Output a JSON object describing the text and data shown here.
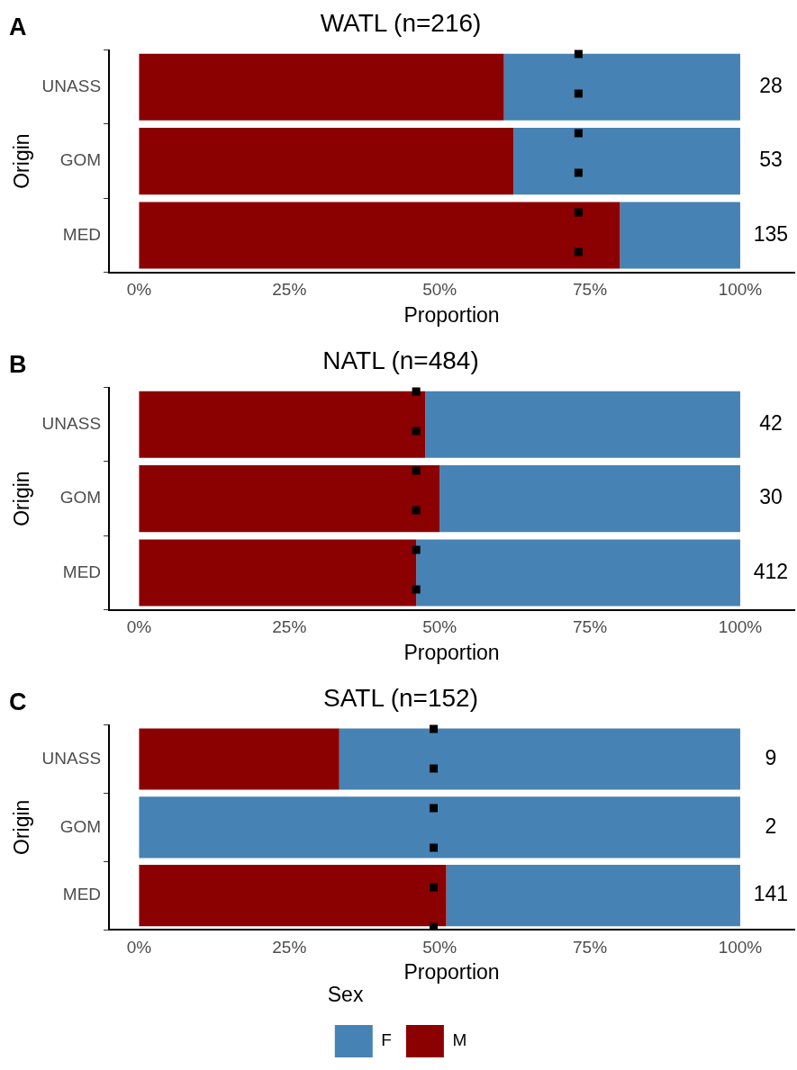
{
  "chart_data": [
    {
      "type": "bar",
      "orientation": "horizontal",
      "stacked": true,
      "title": "WATL (n=216)",
      "xlabel": "Proportion",
      "ylabel": "Origin",
      "categories": [
        "UNASS",
        "GOM",
        "MED"
      ],
      "series": [
        {
          "color": "#8b0000",
          "values": [
            60.7,
            62.3,
            80.0
          ]
        },
        {
          "color": "#4682b4",
          "values": [
            39.3,
            37.7,
            20.0
          ]
        }
      ],
      "xlim": [
        -5,
        109
      ],
      "xticks": [
        {
          "value": 0,
          "label": "0%"
        },
        {
          "value": 25,
          "label": "25%"
        },
        {
          "value": 50,
          "label": "50%"
        },
        {
          "value": 75,
          "label": "75%"
        },
        {
          "value": 100,
          "label": "100%"
        }
      ],
      "ref_lines": [
        {
          "axis": "x",
          "value": 73.1,
          "color": "#000000",
          "line_style": "dotted"
        }
      ],
      "annotations": [
        "A",
        "28",
        "53",
        "135"
      ],
      "grid": false,
      "legend": false
    },
    {
      "type": "bar",
      "orientation": "horizontal",
      "stacked": true,
      "title": "NATL (n=484)",
      "xlabel": "Proportion",
      "ylabel": "Origin",
      "categories": [
        "UNASS",
        "GOM",
        "MED"
      ],
      "series": [
        {
          "color": "#8b0000",
          "values": [
            47.6,
            50.0,
            46.1
          ]
        },
        {
          "color": "#4682b4",
          "values": [
            52.4,
            50.0,
            53.9
          ]
        }
      ],
      "xlim": [
        -5,
        109
      ],
      "xticks": [
        {
          "value": 0,
          "label": "0%"
        },
        {
          "value": 25,
          "label": "25%"
        },
        {
          "value": 50,
          "label": "50%"
        },
        {
          "value": 75,
          "label": "75%"
        },
        {
          "value": 100,
          "label": "100%"
        }
      ],
      "ref_lines": [
        {
          "axis": "x",
          "value": 46.1,
          "color": "#000000",
          "line_style": "dotted"
        }
      ],
      "annotations": [
        "B",
        "42",
        "30",
        "412"
      ],
      "grid": false,
      "legend": false
    },
    {
      "type": "bar",
      "orientation": "horizontal",
      "stacked": true,
      "title": "SATL (n=152)",
      "xlabel": "Proportion",
      "ylabel": "Origin",
      "categories": [
        "UNASS",
        "GOM",
        "MED"
      ],
      "series": [
        {
          "name": "M",
          "color": "#8b0000",
          "values": [
            33.3,
            0,
            51.1
          ]
        },
        {
          "name": "F",
          "color": "#4682b4",
          "values": [
            66.7,
            100,
            48.9
          ]
        }
      ],
      "xlim": [
        -5,
        109
      ],
      "xticks": [
        {
          "value": 0,
          "label": "0%"
        },
        {
          "value": 25,
          "label": "25%"
        },
        {
          "value": 50,
          "label": "50%"
        },
        {
          "value": 75,
          "label": "75%"
        },
        {
          "value": 100,
          "label": "100%"
        }
      ],
      "ref_lines": [
        {
          "axis": "x",
          "value": 49.0,
          "color": "#000000",
          "line_style": "dotted"
        }
      ],
      "annotations": [
        "C",
        "9",
        "2",
        "141"
      ],
      "grid": false,
      "legend": "bottom",
      "legend_title": "Sex"
    }
  ]
}
